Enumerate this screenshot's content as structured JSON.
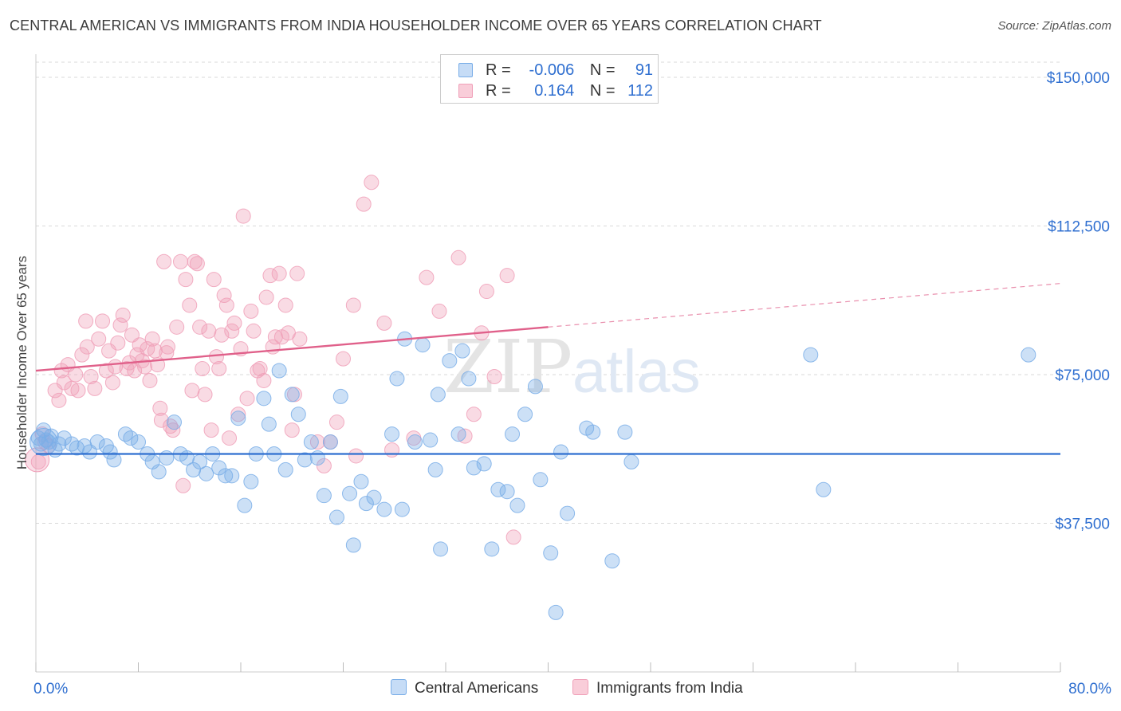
{
  "title": "CENTRAL AMERICAN VS IMMIGRANTS FROM INDIA HOUSEHOLDER INCOME OVER 65 YEARS CORRELATION CHART",
  "source": "Source: ZipAtlas.com",
  "watermark": {
    "zip": "ZIP",
    "atlas": "atlas"
  },
  "colors": {
    "blue": "#7aaee8",
    "blue_line": "#2f6fd0",
    "pink": "#f0a0b9",
    "pink_line": "#e0608a",
    "tick_label": "#2f6fd0",
    "grid": "#d9d9d9"
  },
  "legend": {
    "r_label": "R =",
    "n_label": "N =",
    "rows": [
      {
        "r": "-0.006",
        "n": "91"
      },
      {
        "r": "0.164",
        "n": "112"
      }
    ]
  },
  "chart_data": {
    "type": "scatter",
    "title": "CENTRAL AMERICAN VS IMMIGRANTS FROM INDIA HOUSEHOLDER INCOME OVER 65 YEARS CORRELATION CHART",
    "xlabel": "",
    "ylabel": "Householder Income Over 65 years",
    "xlim": [
      0,
      80
    ],
    "ylim": [
      0,
      152500
    ],
    "x_tick_labels": [
      "0.0%",
      "80.0%"
    ],
    "y_ticks": [
      37500,
      75000,
      112500,
      150000
    ],
    "y_tick_labels": [
      "$37,500",
      "$75,000",
      "$112,500",
      "$150,000"
    ],
    "grid": "horizontal dashed",
    "legend_position": "top-center",
    "series": [
      {
        "name": "Central Americans",
        "color": "#7aaee8",
        "trend": {
          "x": [
            0,
            80
          ],
          "y": [
            55000,
            55000
          ],
          "solid_to": 80
        },
        "points": [
          [
            0.2,
            59000
          ],
          [
            0.4,
            57500
          ],
          [
            0.6,
            61000
          ],
          [
            0.8,
            58500
          ],
          [
            1.0,
            58000
          ],
          [
            1.2,
            59500
          ],
          [
            1.5,
            56000
          ],
          [
            1.8,
            57500
          ],
          [
            2.2,
            59000
          ],
          [
            2.8,
            57500
          ],
          [
            3.2,
            56500
          ],
          [
            3.8,
            57000
          ],
          [
            4.2,
            55500
          ],
          [
            4.8,
            58000
          ],
          [
            5.5,
            57000
          ],
          [
            5.8,
            55500
          ],
          [
            6.1,
            53500
          ],
          [
            7.0,
            60000
          ],
          [
            7.4,
            59000
          ],
          [
            8.0,
            58000
          ],
          [
            8.7,
            55000
          ],
          [
            9.1,
            53000
          ],
          [
            9.6,
            50500
          ],
          [
            10.2,
            54000
          ],
          [
            10.8,
            63000
          ],
          [
            11.3,
            55000
          ],
          [
            11.8,
            54000
          ],
          [
            12.3,
            51000
          ],
          [
            12.8,
            53000
          ],
          [
            13.3,
            50000
          ],
          [
            13.8,
            55000
          ],
          [
            14.3,
            51500
          ],
          [
            14.8,
            49500
          ],
          [
            15.3,
            49500
          ],
          [
            15.8,
            64000
          ],
          [
            16.3,
            42000
          ],
          [
            16.8,
            48000
          ],
          [
            17.2,
            55000
          ],
          [
            17.8,
            69000
          ],
          [
            18.2,
            62500
          ],
          [
            18.6,
            55000
          ],
          [
            19.0,
            76000
          ],
          [
            19.5,
            51000
          ],
          [
            20.0,
            70000
          ],
          [
            20.5,
            65000
          ],
          [
            21.0,
            53500
          ],
          [
            21.5,
            58000
          ],
          [
            22.0,
            54000
          ],
          [
            22.5,
            44500
          ],
          [
            23.0,
            58000
          ],
          [
            23.5,
            39000
          ],
          [
            23.8,
            69500
          ],
          [
            24.5,
            45000
          ],
          [
            24.8,
            32000
          ],
          [
            25.4,
            48000
          ],
          [
            25.8,
            42500
          ],
          [
            26.4,
            44000
          ],
          [
            27.2,
            41000
          ],
          [
            27.8,
            60000
          ],
          [
            28.2,
            74000
          ],
          [
            28.6,
            41000
          ],
          [
            28.8,
            84000
          ],
          [
            29.6,
            58000
          ],
          [
            30.2,
            82500
          ],
          [
            30.8,
            58500
          ],
          [
            31.2,
            51000
          ],
          [
            31.4,
            70000
          ],
          [
            31.6,
            31000
          ],
          [
            32.3,
            78500
          ],
          [
            33.0,
            60000
          ],
          [
            33.3,
            81000
          ],
          [
            33.8,
            74000
          ],
          [
            34.2,
            51500
          ],
          [
            35.0,
            52500
          ],
          [
            35.6,
            31000
          ],
          [
            36.1,
            46000
          ],
          [
            36.8,
            45500
          ],
          [
            37.2,
            60000
          ],
          [
            37.6,
            42000
          ],
          [
            38.2,
            65000
          ],
          [
            39.0,
            72000
          ],
          [
            39.4,
            48500
          ],
          [
            40.2,
            30000
          ],
          [
            40.6,
            15000
          ],
          [
            41.0,
            55500
          ],
          [
            41.5,
            40000
          ],
          [
            43.0,
            61500
          ],
          [
            43.5,
            60500
          ],
          [
            45.0,
            28000
          ],
          [
            46.0,
            60500
          ],
          [
            46.5,
            53000
          ],
          [
            60.5,
            80000
          ],
          [
            61.5,
            46000
          ],
          [
            77.5,
            80000
          ]
        ]
      },
      {
        "name": "Immigrants from India",
        "color": "#f0a0b9",
        "trend": {
          "x": [
            0,
            80
          ],
          "y": [
            76000,
            98000
          ],
          "solid_to": 40
        },
        "points": [
          [
            0.2,
            53000
          ],
          [
            0.5,
            60000
          ],
          [
            0.7,
            58000
          ],
          [
            1.0,
            57000
          ],
          [
            1.5,
            71000
          ],
          [
            1.8,
            68500
          ],
          [
            2.0,
            76000
          ],
          [
            2.2,
            73000
          ],
          [
            2.5,
            77500
          ],
          [
            2.8,
            71500
          ],
          [
            3.1,
            75000
          ],
          [
            3.3,
            71000
          ],
          [
            3.6,
            80000
          ],
          [
            3.9,
            88500
          ],
          [
            4.0,
            82000
          ],
          [
            4.3,
            74500
          ],
          [
            4.6,
            71500
          ],
          [
            4.9,
            84000
          ],
          [
            5.2,
            88500
          ],
          [
            5.5,
            76000
          ],
          [
            5.7,
            81000
          ],
          [
            6.0,
            73000
          ],
          [
            6.2,
            77000
          ],
          [
            6.4,
            83000
          ],
          [
            6.6,
            87500
          ],
          [
            6.8,
            90000
          ],
          [
            7.1,
            76500
          ],
          [
            7.3,
            78000
          ],
          [
            7.5,
            85000
          ],
          [
            7.7,
            76000
          ],
          [
            7.9,
            80000
          ],
          [
            8.1,
            82500
          ],
          [
            8.3,
            78500
          ],
          [
            8.5,
            77000
          ],
          [
            8.7,
            81500
          ],
          [
            8.9,
            73500
          ],
          [
            9.1,
            84000
          ],
          [
            9.3,
            81000
          ],
          [
            9.5,
            77500
          ],
          [
            9.7,
            66500
          ],
          [
            9.8,
            63500
          ],
          [
            10.0,
            103500
          ],
          [
            10.2,
            80500
          ],
          [
            10.3,
            82000
          ],
          [
            10.5,
            62000
          ],
          [
            10.7,
            61000
          ],
          [
            11.0,
            87000
          ],
          [
            11.3,
            103500
          ],
          [
            11.5,
            47000
          ],
          [
            11.7,
            99000
          ],
          [
            12.0,
            92500
          ],
          [
            12.2,
            71000
          ],
          [
            12.4,
            103500
          ],
          [
            12.6,
            103000
          ],
          [
            12.8,
            87000
          ],
          [
            13.0,
            76500
          ],
          [
            13.2,
            70000
          ],
          [
            13.5,
            86000
          ],
          [
            13.7,
            61000
          ],
          [
            13.9,
            99000
          ],
          [
            14.1,
            79500
          ],
          [
            14.3,
            76500
          ],
          [
            14.5,
            85000
          ],
          [
            14.7,
            95000
          ],
          [
            14.9,
            92500
          ],
          [
            15.1,
            59000
          ],
          [
            15.3,
            86000
          ],
          [
            15.5,
            88000
          ],
          [
            15.8,
            65000
          ],
          [
            16.0,
            81500
          ],
          [
            16.2,
            115000
          ],
          [
            16.5,
            69000
          ],
          [
            16.8,
            91000
          ],
          [
            17.0,
            86000
          ],
          [
            17.3,
            76000
          ],
          [
            17.5,
            76500
          ],
          [
            17.8,
            73500
          ],
          [
            18.0,
            94500
          ],
          [
            18.3,
            100000
          ],
          [
            18.5,
            82000
          ],
          [
            18.7,
            84500
          ],
          [
            19.0,
            100500
          ],
          [
            19.2,
            84500
          ],
          [
            19.5,
            92500
          ],
          [
            19.7,
            85500
          ],
          [
            20.0,
            61000
          ],
          [
            20.2,
            70000
          ],
          [
            20.4,
            100500
          ],
          [
            20.6,
            84000
          ],
          [
            22.0,
            58000
          ],
          [
            22.5,
            52000
          ],
          [
            23.0,
            58000
          ],
          [
            23.5,
            63000
          ],
          [
            24.0,
            79000
          ],
          [
            24.8,
            92500
          ],
          [
            25.0,
            54500
          ],
          [
            25.6,
            118000
          ],
          [
            26.2,
            123500
          ],
          [
            27.2,
            88000
          ],
          [
            27.8,
            56000
          ],
          [
            29.5,
            59000
          ],
          [
            30.5,
            99500
          ],
          [
            31.5,
            91000
          ],
          [
            33.0,
            104500
          ],
          [
            33.5,
            59500
          ],
          [
            34.2,
            65000
          ],
          [
            34.8,
            85500
          ],
          [
            35.2,
            96000
          ],
          [
            35.8,
            74500
          ],
          [
            36.8,
            100000
          ],
          [
            37.3,
            34000
          ]
        ]
      }
    ]
  },
  "bottom_legend": [
    "Central Americans",
    "Immigrants from India"
  ]
}
